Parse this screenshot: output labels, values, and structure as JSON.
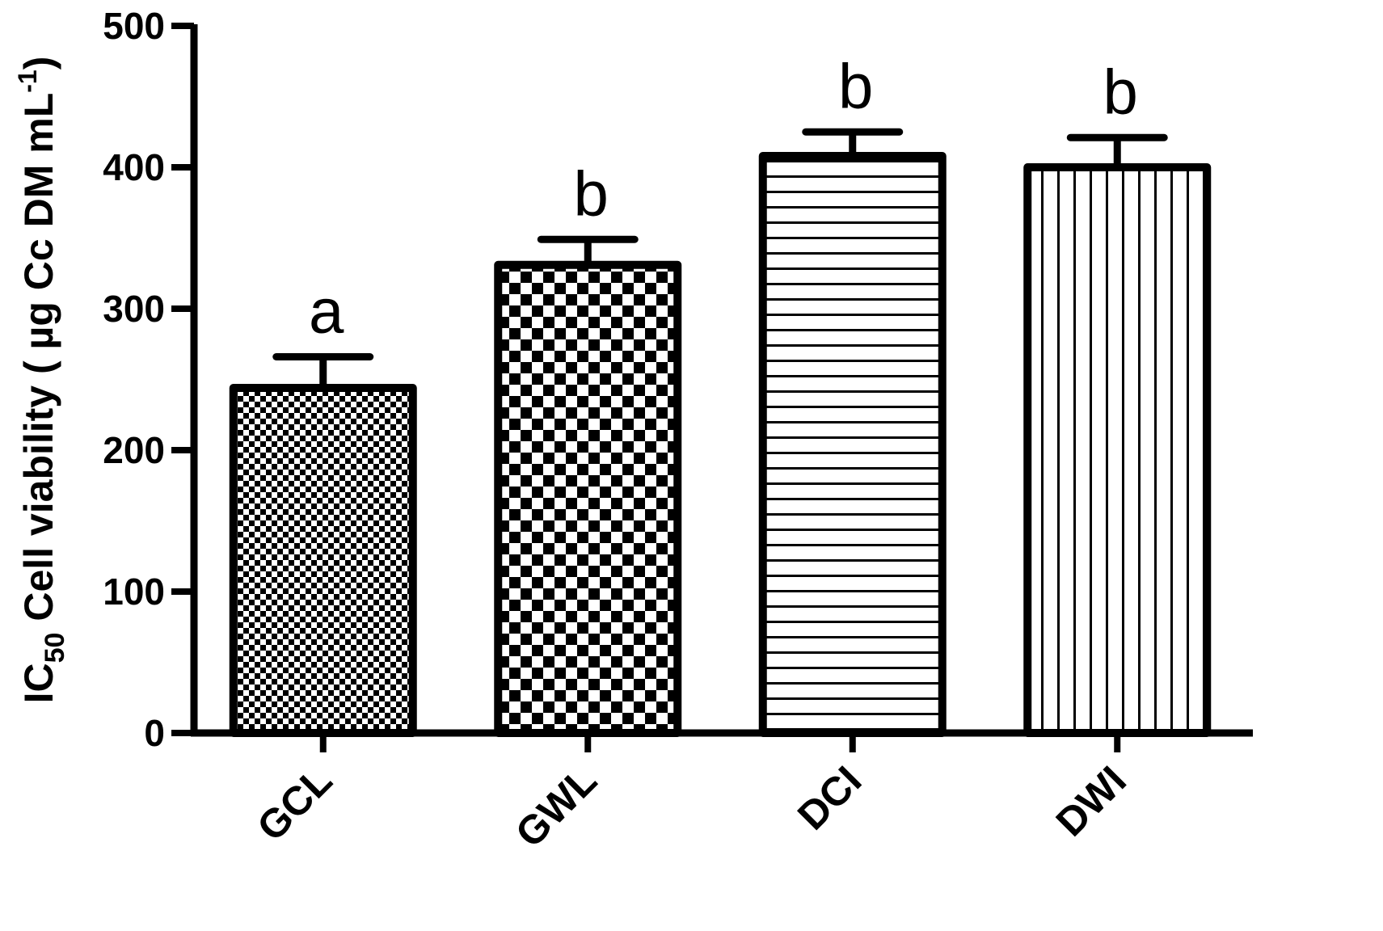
{
  "chart_data": {
    "type": "bar",
    "title": "",
    "xlabel": "",
    "ylabel": {
      "prefix": "IC",
      "prefix_sub": "50",
      "main": " Cell viability ( µg  Cc DM mL",
      "sup": "-1",
      "suffix": ")"
    },
    "ylim": [
      0,
      500
    ],
    "yticks": [
      0,
      100,
      200,
      300,
      400,
      500
    ],
    "categories": [
      "GCL",
      "GWL",
      "DCI",
      "DWI"
    ],
    "values": [
      244,
      331,
      408,
      400
    ],
    "errors": [
      22,
      18,
      17,
      21
    ],
    "letters": [
      "a",
      "b",
      "b",
      "b"
    ],
    "fill_patterns": [
      "fine-checker",
      "coarse-checker",
      "horizontal-lines",
      "vertical-lines"
    ],
    "grid": false,
    "legend": "none",
    "colors": {
      "stroke": "#000000",
      "background": "#ffffff"
    }
  }
}
